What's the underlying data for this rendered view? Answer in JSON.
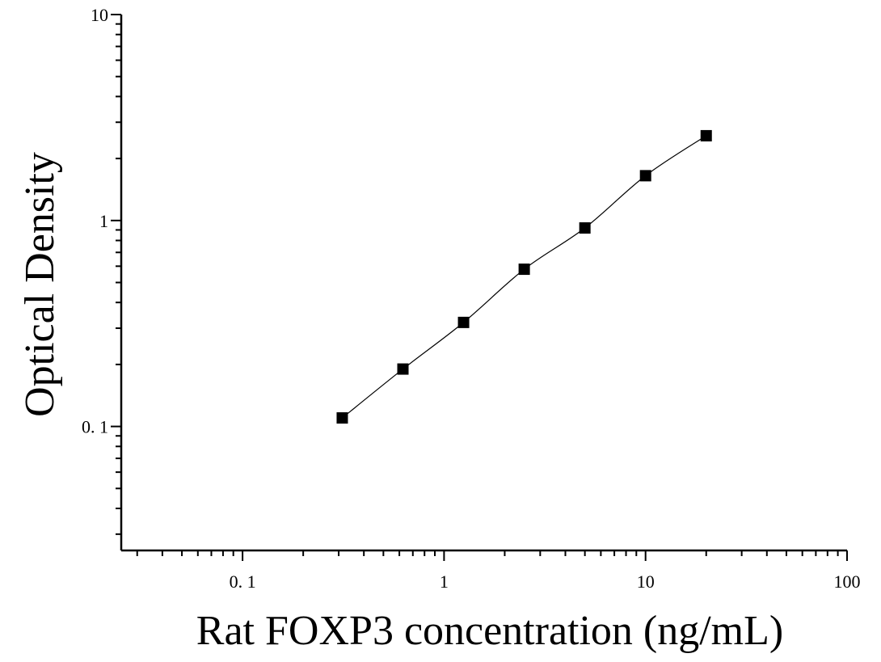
{
  "chart_data": {
    "type": "scatter",
    "title": "",
    "xlabel": "Rat FOXP3 concentration (ng/mL)",
    "ylabel": "Optical Density",
    "xscale": "log",
    "yscale": "log",
    "xlim": [
      0.025,
      100
    ],
    "ylim": [
      0.025,
      10
    ],
    "xticks": [
      {
        "value": 0.1,
        "label": "0. 1"
      },
      {
        "value": 1,
        "label": "1"
      },
      {
        "value": 10,
        "label": "10"
      },
      {
        "value": 100,
        "label": "100"
      }
    ],
    "yticks": [
      {
        "value": 0.1,
        "label": "0. 1"
      },
      {
        "value": 1,
        "label": "1"
      },
      {
        "value": 10,
        "label": "10"
      }
    ],
    "grid": false,
    "legend": false,
    "marker": "square",
    "marker_color": "#000000",
    "line_color": "#000000",
    "series": [
      {
        "x": [
          0.3125,
          0.625,
          1.25,
          2.5,
          5,
          10,
          20
        ],
        "y": [
          0.11,
          0.19,
          0.32,
          0.58,
          0.92,
          1.65,
          2.58
        ]
      }
    ],
    "fit_curve": true
  }
}
